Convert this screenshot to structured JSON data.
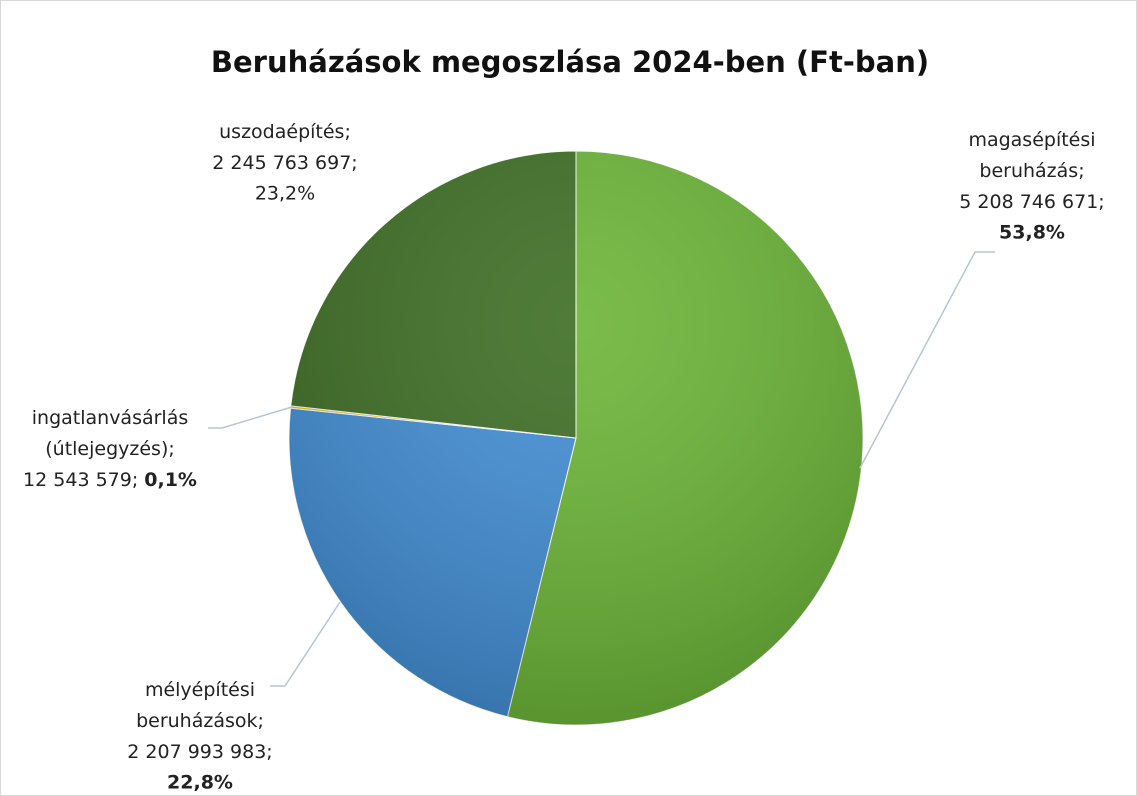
{
  "chart_data": {
    "type": "pie",
    "title": "Beruházások megoszlása 2024-ben (Ft-ban)",
    "categories": [
      "magasépítési beruházás",
      "mélyépítési beruházások",
      "ingatlanvásárlás (útlejegyzés)",
      "uszodaépítés"
    ],
    "values": [
      5208746671,
      2207993983,
      12543579,
      2245763697
    ],
    "value_labels": [
      "5 208 746 671",
      "2 207 993 983",
      "12 543 579",
      "2 245 763 697"
    ],
    "percent_labels": [
      "53,8%",
      "22,8%",
      "0,1%",
      "23,2%"
    ],
    "bold_percent": [
      true,
      true,
      true,
      false
    ],
    "label_separator": ";",
    "colors": [
      "#68b332",
      "#3d8bd3",
      "#f2c314",
      "#386a1e"
    ],
    "start_angle": 0,
    "direction": "clockwise"
  }
}
